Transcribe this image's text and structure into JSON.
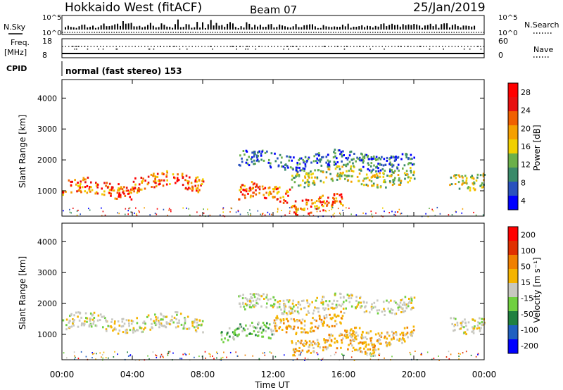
{
  "header": {
    "title": "Hokkaido West (fitACF)",
    "beam": "Beam 07",
    "date": "25/Jan/2019"
  },
  "strips": {
    "nsky_label": "N.Sky",
    "nsky_tick_top": "10^5",
    "nsky_tick_bottom": "10^0",
    "nsearch_label": "N.Search",
    "freq_label": "Freq.",
    "freq_unit": "[MHz]",
    "freq_tick_top": "18",
    "freq_tick_bottom": "8",
    "nave_label": "Nave",
    "nave_tick_top": "60",
    "nave_tick_bottom": "0",
    "cpid_label": "CPID",
    "cpid_text": "normal (fast stereo) 153"
  },
  "colors": {
    "power": [
      "#0000ff",
      "#2a52be",
      "#3a8a6a",
      "#6bb04a",
      "#f0d000",
      "#f5a000",
      "#f06000",
      "#e81010",
      "#ff0000"
    ],
    "velocity": [
      "#0000ff",
      "#2060c0",
      "#208040",
      "#70d040",
      "#c8c8c0",
      "#f5b400",
      "#f08000",
      "#e03000",
      "#ff0000"
    ]
  },
  "chart_data": [
    {
      "type": "heatmap",
      "name": "power",
      "ylabel": "Slant Range [km]",
      "xlabel": "",
      "yticks": [
        "1000",
        "2000",
        "3000",
        "4000"
      ],
      "ylim": [
        180,
        4600
      ],
      "x_ticks": [
        "00:00",
        "04:00",
        "08:00",
        "12:00",
        "16:00",
        "20:00",
        "00:00"
      ],
      "colorbar_label": "Power [dB]",
      "colorbar_ticks": [
        "4",
        "8",
        "12",
        "16",
        "20",
        "24",
        "28"
      ],
      "bands": [
        {
          "start_h": 0,
          "end_h": 4,
          "range_km": 1100,
          "level": "strong"
        },
        {
          "start_h": 4,
          "end_h": 8,
          "range_km": 1300,
          "level": "strong"
        },
        {
          "start_h": 10,
          "end_h": 13,
          "range_km": 950,
          "level": "strong"
        },
        {
          "start_h": 13,
          "end_h": 16,
          "range_km": 600,
          "level": "strong"
        },
        {
          "start_h": 13,
          "end_h": 20,
          "range_km": 1500,
          "level": "medium"
        },
        {
          "start_h": 10,
          "end_h": 20,
          "range_km": 2000,
          "level": "weak"
        },
        {
          "start_h": 22,
          "end_h": 24,
          "range_km": 1400,
          "level": "medium"
        }
      ]
    },
    {
      "type": "heatmap",
      "name": "velocity",
      "ylabel": "Slant Range [km]",
      "xlabel": "Time UT",
      "yticks": [
        "1000",
        "2000",
        "3000",
        "4000"
      ],
      "ylim": [
        180,
        4600
      ],
      "x_ticks": [
        "00:00",
        "04:00",
        "08:00",
        "12:00",
        "16:00",
        "20:00",
        "00:00"
      ],
      "colorbar_label": "Velocity [m s⁻¹]",
      "colorbar_ticks": [
        "200",
        "100",
        "50",
        "15",
        "-15",
        "-50",
        "-100",
        "-200"
      ],
      "bands": [
        {
          "start_h": 0,
          "end_h": 8,
          "range_km": 1400,
          "level": "neutral"
        },
        {
          "start_h": 9,
          "end_h": 12,
          "range_km": 1100,
          "level": "green"
        },
        {
          "start_h": 12,
          "end_h": 16,
          "range_km": 1400,
          "level": "orange"
        },
        {
          "start_h": 13,
          "end_h": 18,
          "range_km": 700,
          "level": "orange"
        },
        {
          "start_h": 16,
          "end_h": 20,
          "range_km": 1000,
          "level": "orange"
        },
        {
          "start_h": 10,
          "end_h": 20,
          "range_km": 2000,
          "level": "neutral"
        },
        {
          "start_h": 22,
          "end_h": 24,
          "range_km": 1400,
          "level": "neutral"
        }
      ]
    }
  ]
}
